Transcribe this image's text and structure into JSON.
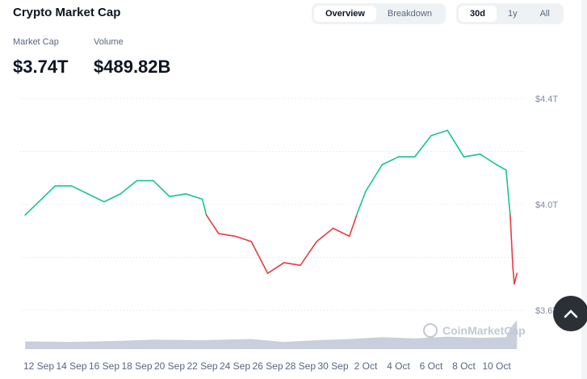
{
  "header": {
    "title": "Crypto Market Cap",
    "view_tabs": [
      {
        "label": "Overview",
        "active": true
      },
      {
        "label": "Breakdown",
        "active": false
      }
    ],
    "range_tabs": [
      {
        "label": "30d",
        "active": true
      },
      {
        "label": "1y",
        "active": false
      },
      {
        "label": "All",
        "active": false
      }
    ]
  },
  "stats": {
    "market_cap_label": "Market Cap",
    "market_cap_value": "$3.74T",
    "volume_label": "Volume",
    "volume_value": "$489.82B"
  },
  "watermark": "CoinMarketCap",
  "colors": {
    "up": "#16c784",
    "down": "#ea3943",
    "volume": "#c9cfdd"
  },
  "chart_data": {
    "type": "line",
    "title": "",
    "ylim": [
      3.6,
      4.4
    ],
    "y_unit": "T",
    "y_ticks": [
      "$4.4T",
      "$4.0T",
      "$3.6T"
    ],
    "y_tick_values": [
      4.4,
      4.0,
      3.6
    ],
    "x_ticks": [
      "12 Sep",
      "14 Sep",
      "16 Sep",
      "18 Sep",
      "20 Sep",
      "22 Sep",
      "24 Sep",
      "26 Sep",
      "28 Sep",
      "30 Sep",
      "2 Oct",
      "4 Oct",
      "6 Oct",
      "8 Oct",
      "10 Oct"
    ],
    "grid": true,
    "baseline_coloring": "green above start value, red below",
    "series": [
      {
        "values": [
          [
            "2025-09-11T04:00",
            3.96
          ],
          [
            "2025-09-12T00:00",
            4.01
          ],
          [
            "2025-09-13T00:00",
            4.07
          ],
          [
            "2025-09-14T00:00",
            4.07
          ],
          [
            "2025-09-15T00:00",
            4.04
          ],
          [
            "2025-09-16T00:00",
            4.01
          ],
          [
            "2025-09-17T00:00",
            4.04
          ],
          [
            "2025-09-18T00:00",
            4.09
          ],
          [
            "2025-09-19T00:00",
            4.09
          ],
          [
            "2025-09-20T00:00",
            4.03
          ],
          [
            "2025-09-21T00:00",
            4.04
          ],
          [
            "2025-09-22T00:00",
            4.02
          ],
          [
            "2025-09-22T06:00",
            3.96
          ],
          [
            "2025-09-23T00:00",
            3.89
          ],
          [
            "2025-09-24T00:00",
            3.88
          ],
          [
            "2025-09-25T00:00",
            3.86
          ],
          [
            "2025-09-26T00:00",
            3.74
          ],
          [
            "2025-09-27T00:00",
            3.78
          ],
          [
            "2025-09-28T00:00",
            3.77
          ],
          [
            "2025-09-29T00:00",
            3.86
          ],
          [
            "2025-09-30T00:00",
            3.91
          ],
          [
            "2025-10-01T00:00",
            3.88
          ],
          [
            "2025-10-01T12:00",
            3.97
          ],
          [
            "2025-10-02T00:00",
            4.05
          ],
          [
            "2025-10-03T00:00",
            4.15
          ],
          [
            "2025-10-04T00:00",
            4.18
          ],
          [
            "2025-10-05T00:00",
            4.18
          ],
          [
            "2025-10-06T00:00",
            4.26
          ],
          [
            "2025-10-07T00:00",
            4.28
          ],
          [
            "2025-10-08T00:00",
            4.18
          ],
          [
            "2025-10-09T00:00",
            4.19
          ],
          [
            "2025-10-10T00:00",
            4.15
          ],
          [
            "2025-10-10T14:00",
            4.13
          ],
          [
            "2025-10-10T20:00",
            3.96
          ],
          [
            "2025-10-11T00:00",
            3.76
          ],
          [
            "2025-10-11T02:00",
            3.7
          ],
          [
            "2025-10-11T06:00",
            3.74
          ]
        ]
      }
    ],
    "volume": {
      "unit": "B",
      "values": [
        [
          "2025-09-11T04:00",
          130
        ],
        [
          "2025-09-14T00:00",
          120
        ],
        [
          "2025-09-17T00:00",
          140
        ],
        [
          "2025-09-19T00:00",
          160
        ],
        [
          "2025-09-22T00:00",
          150
        ],
        [
          "2025-09-25T00:00",
          170
        ],
        [
          "2025-09-27T00:00",
          120
        ],
        [
          "2025-09-29T00:00",
          150
        ],
        [
          "2025-10-01T00:00",
          170
        ],
        [
          "2025-10-03T00:00",
          200
        ],
        [
          "2025-10-05T00:00",
          180
        ],
        [
          "2025-10-07T00:00",
          210
        ],
        [
          "2025-10-09T00:00",
          190
        ],
        [
          "2025-10-10T14:00",
          200
        ],
        [
          "2025-10-10T20:00",
          350
        ],
        [
          "2025-10-11T06:00",
          489.82
        ]
      ]
    }
  }
}
